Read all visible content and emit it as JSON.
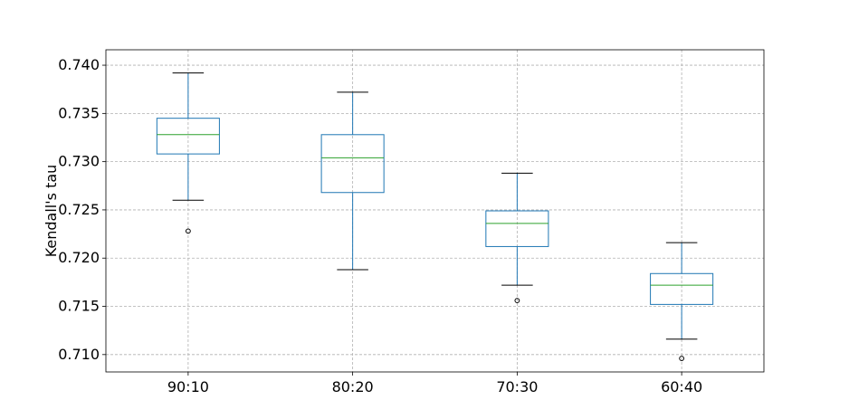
{
  "chart_data": {
    "type": "box",
    "title": "",
    "xlabel": "",
    "ylabel": "Kendall's tau",
    "ylim": [
      0.7082,
      0.7416
    ],
    "yticks": [
      0.71,
      0.715,
      0.72,
      0.725,
      0.73,
      0.735,
      0.74
    ],
    "ytick_labels": [
      "0.710",
      "0.715",
      "0.720",
      "0.725",
      "0.730",
      "0.735",
      "0.740"
    ],
    "categories": [
      "90:10",
      "80:20",
      "70:30",
      "60:40"
    ],
    "grid": true,
    "boxes": [
      {
        "label": "90:10",
        "whisker_low": 0.726,
        "q1": 0.7308,
        "median": 0.7328,
        "q3": 0.7345,
        "whisker_high": 0.7392,
        "outliers": [
          0.7228
        ]
      },
      {
        "label": "80:20",
        "whisker_low": 0.7188,
        "q1": 0.7268,
        "median": 0.7304,
        "q3": 0.7328,
        "whisker_high": 0.7372,
        "outliers": []
      },
      {
        "label": "70:30",
        "whisker_low": 0.7172,
        "q1": 0.7212,
        "median": 0.7236,
        "q3": 0.7249,
        "whisker_high": 0.7288,
        "outliers": [
          0.7156
        ]
      },
      {
        "label": "60:40",
        "whisker_low": 0.7116,
        "q1": 0.7152,
        "median": 0.7172,
        "q3": 0.7184,
        "whisker_high": 0.7216,
        "outliers": [
          0.7096
        ]
      }
    ],
    "colors": {
      "box": "#1f77b4",
      "median": "#2ca02c",
      "whisker": "#000000",
      "grid": "#b0b0b0"
    }
  }
}
